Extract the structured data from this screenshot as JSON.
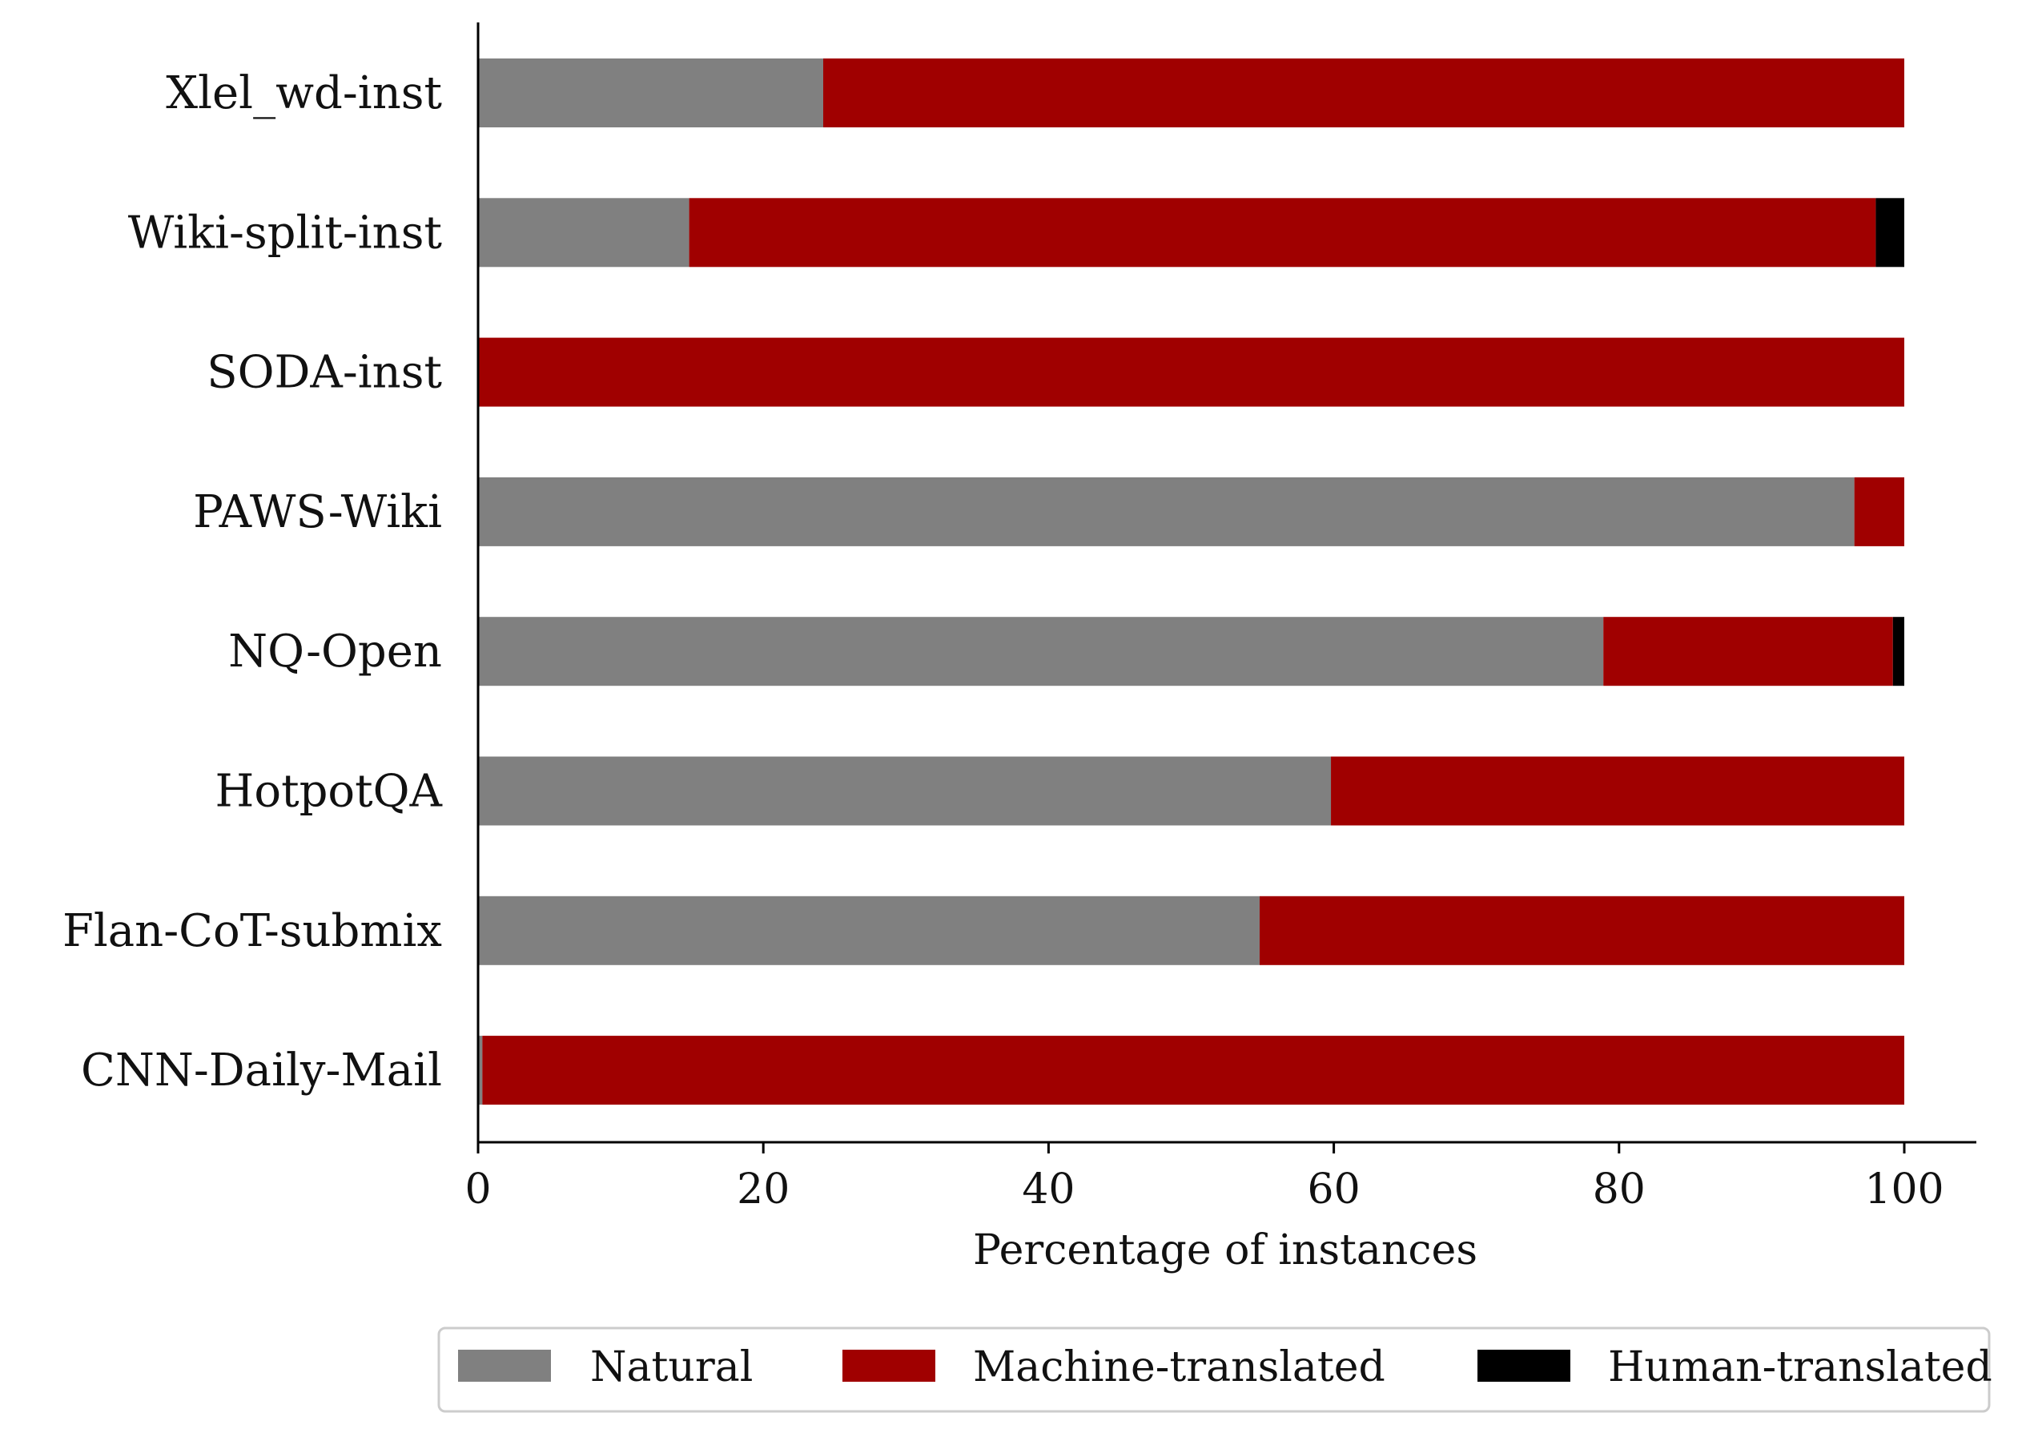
{
  "chart_data": {
    "type": "bar",
    "orientation": "horizontal",
    "stacked": true,
    "categories": [
      "Xlel_wd-inst",
      "Wiki-split-inst",
      "SODA-inst",
      "PAWS-Wiki",
      "NQ-Open",
      "HotpotQA",
      "Flan-CoT-submix",
      "CNN-Daily-Mail"
    ],
    "series": [
      {
        "name": "Natural",
        "color": "#808080",
        "values": [
          24.2,
          14.8,
          0,
          96.5,
          78.9,
          59.8,
          54.8,
          0.3
        ]
      },
      {
        "name": "Machine-translated",
        "color": "#a00000",
        "values": [
          75.8,
          83.2,
          100,
          3.5,
          20.3,
          40.2,
          45.2,
          99.7
        ]
      },
      {
        "name": "Human-translated",
        "color": "#000000",
        "values": [
          0,
          2.0,
          0,
          0,
          0.8,
          0,
          0,
          0
        ]
      }
    ],
    "xlabel": "Percentage of instances",
    "ylabel": "",
    "xlim": [
      0,
      105
    ],
    "xticks": [
      0,
      20,
      40,
      60,
      80,
      100
    ],
    "xtick_labels": [
      "0",
      "20",
      "40",
      "60",
      "80",
      "100"
    ],
    "grid": false,
    "legend_position": "bottom-center"
  }
}
